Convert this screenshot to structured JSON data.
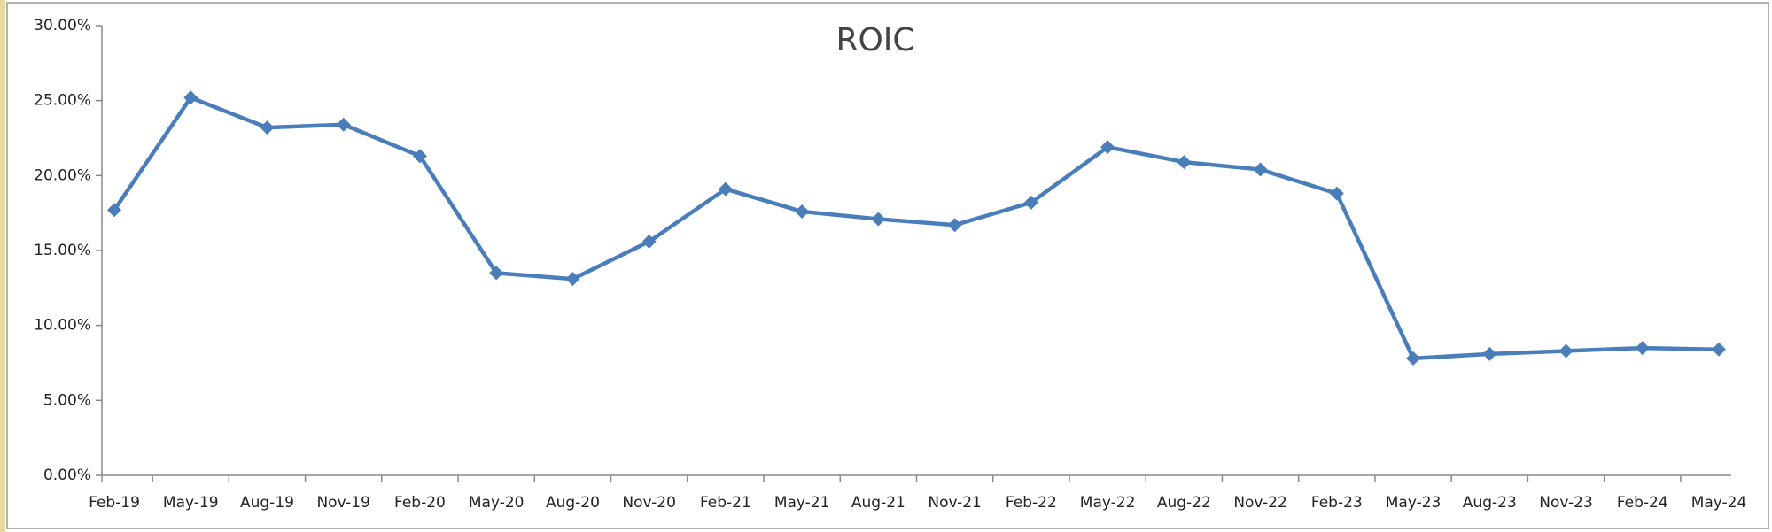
{
  "chart_data": {
    "type": "line",
    "title": "ROIC",
    "categories": [
      "Feb-19",
      "May-19",
      "Aug-19",
      "Nov-19",
      "Feb-20",
      "May-20",
      "Aug-20",
      "Nov-20",
      "Feb-21",
      "May-21",
      "Aug-21",
      "Nov-21",
      "Feb-22",
      "May-22",
      "Aug-22",
      "Nov-22",
      "Feb-23",
      "May-23",
      "Aug-23",
      "Nov-23",
      "Feb-24",
      "May-24"
    ],
    "values": [
      17.7,
      25.2,
      23.2,
      23.4,
      21.3,
      13.5,
      13.1,
      15.6,
      19.1,
      17.6,
      17.1,
      16.7,
      18.2,
      21.9,
      20.9,
      20.4,
      18.8,
      7.8,
      8.1,
      8.3,
      8.5,
      8.4
    ],
    "color": "#4a7ebb",
    "ylim": [
      0,
      30
    ],
    "yticks": [
      {
        "value": 0,
        "label": "0.00%"
      },
      {
        "value": 5,
        "label": "5.00%"
      },
      {
        "value": 10,
        "label": "10.00%"
      },
      {
        "value": 15,
        "label": "15.00%"
      },
      {
        "value": 20,
        "label": "20.00%"
      },
      {
        "value": 25,
        "label": "25.00%"
      },
      {
        "value": 30,
        "label": "30.00%"
      }
    ],
    "grid": false
  }
}
